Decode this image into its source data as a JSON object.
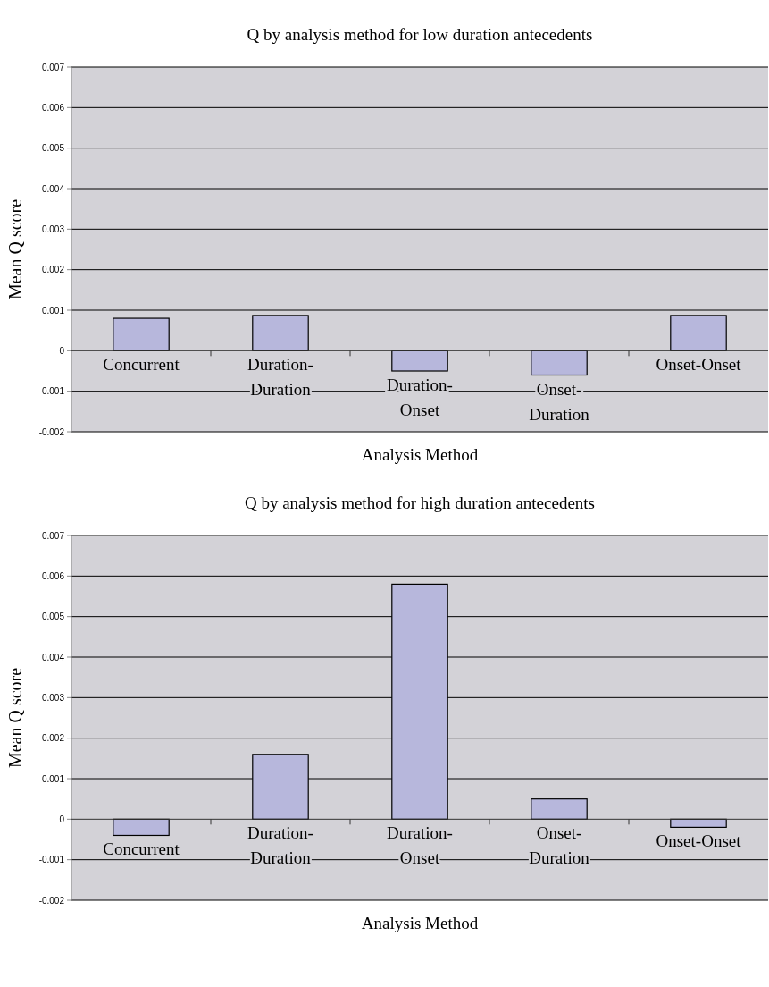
{
  "chart_data": [
    {
      "type": "bar",
      "title": "Q by analysis method for low duration antecedents",
      "xlabel": "Analysis Method",
      "ylabel": "Mean Q score",
      "categories": [
        "Concurrent",
        "Duration-Duration",
        "Duration-Onset",
        "Onset-Duration",
        "Onset-Onset"
      ],
      "values": [
        0.0008,
        0.00087,
        -0.0005,
        -0.0006,
        0.00087
      ],
      "color": "#b7b7dc",
      "ylim": [
        -0.002,
        0.007
      ],
      "yticks": [
        -0.002,
        -0.001,
        0,
        0.001,
        0.002,
        0.003,
        0.004,
        0.005,
        0.006,
        0.007
      ],
      "grid": "y"
    },
    {
      "type": "bar",
      "title": "Q by analysis method for high duration antecedents",
      "xlabel": "Analysis Method",
      "ylabel": "Mean Q score",
      "categories": [
        "Concurrent",
        "Duration-Duration",
        "Duration-Onset",
        "Onset-Duration",
        "Onset-Onset"
      ],
      "values": [
        -0.0004,
        0.0016,
        0.0058,
        0.0005,
        -0.0002
      ],
      "color": "#b7b7dc",
      "ylim": [
        -0.002,
        0.007
      ],
      "yticks": [
        -0.002,
        -0.001,
        0,
        0.001,
        0.002,
        0.003,
        0.004,
        0.005,
        0.006,
        0.007
      ],
      "grid": "y"
    }
  ]
}
